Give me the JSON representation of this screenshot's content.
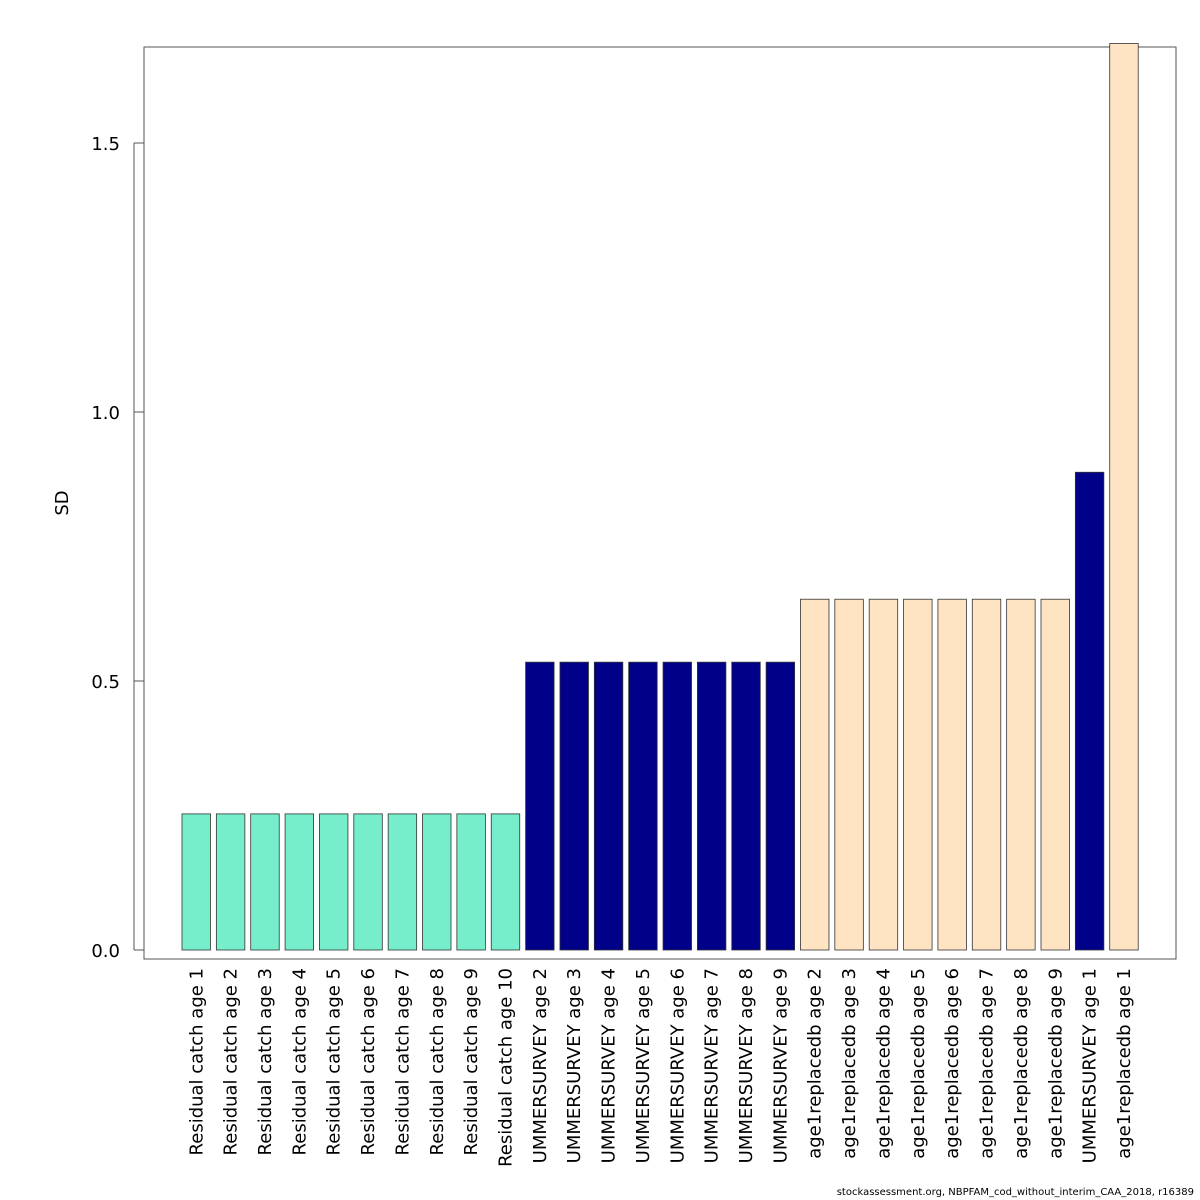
{
  "chart_data": {
    "type": "bar",
    "ylabel": "SD",
    "ylim": [
      0,
      1.68
    ],
    "yticks": [
      "0.0",
      "0.5",
      "1.0",
      "1.5"
    ],
    "ytick_values": [
      0,
      0.5,
      1.0,
      1.5
    ],
    "categories": [
      "Residual catch age 1",
      "Residual catch age 2",
      "Residual catch age 3",
      "Residual catch age 4",
      "Residual catch age 5",
      "Residual catch age 6",
      "Residual catch age 7",
      "Residual catch age 8",
      "Residual catch age 9",
      "Residual catch age 10",
      "UMMERSURVEY age 2",
      "UMMERSURVEY age 3",
      "UMMERSURVEY age 4",
      "UMMERSURVEY age 5",
      "UMMERSURVEY age 6",
      "UMMERSURVEY age 7",
      "UMMERSURVEY age 8",
      "UMMERSURVEY age 9",
      "age1replacedb age 2",
      "age1replacedb age 3",
      "age1replacedb age 4",
      "age1replacedb age 5",
      "age1replacedb age 6",
      "age1replacedb age 7",
      "age1replacedb age 8",
      "age1replacedb age 9",
      "UMMERSURVEY age 1",
      "age1replacedb age 1"
    ],
    "values": [
      0.253,
      0.253,
      0.253,
      0.253,
      0.253,
      0.253,
      0.253,
      0.253,
      0.253,
      0.253,
      0.535,
      0.535,
      0.535,
      0.535,
      0.535,
      0.535,
      0.535,
      0.535,
      0.652,
      0.652,
      0.652,
      0.652,
      0.652,
      0.652,
      0.652,
      0.652,
      0.888,
      1.685
    ],
    "bar_colors": [
      "#76eecb",
      "#76eecb",
      "#76eecb",
      "#76eecb",
      "#76eecb",
      "#76eecb",
      "#76eecb",
      "#76eecb",
      "#76eecb",
      "#76eecb",
      "#000088",
      "#000088",
      "#000088",
      "#000088",
      "#000088",
      "#000088",
      "#000088",
      "#000088",
      "#ffe4c4",
      "#ffe4c4",
      "#ffe4c4",
      "#ffe4c4",
      "#ffe4c4",
      "#ffe4c4",
      "#ffe4c4",
      "#ffe4c4",
      "#000088",
      "#ffe4c4"
    ],
    "grid": false
  },
  "footer": "stockassessment.org, NBPFAM_cod_without_interim_CAA_2018, r16389"
}
